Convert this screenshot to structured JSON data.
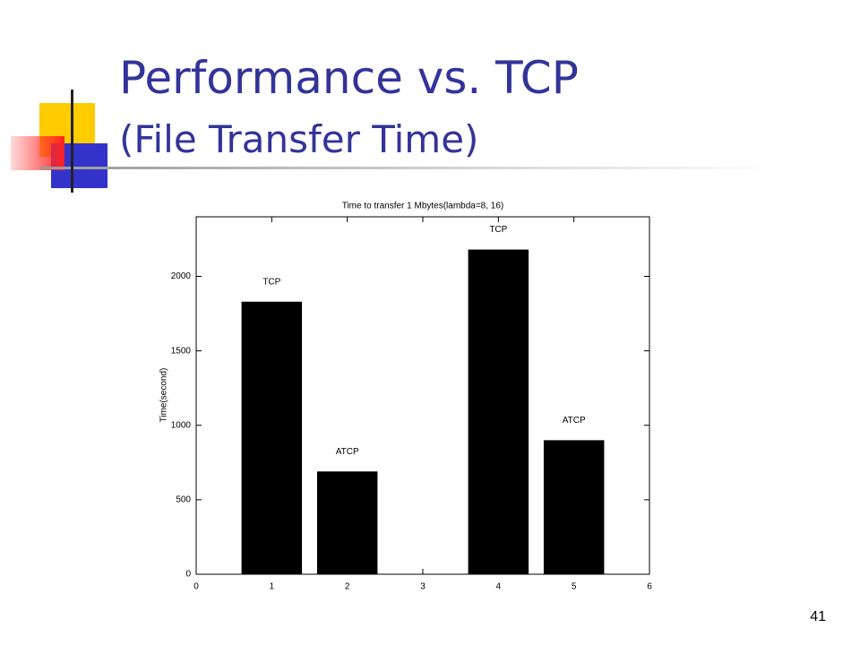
{
  "slide": {
    "title": "Performance vs. TCP",
    "subtitle": "(File Transfer Time)",
    "page_number": "41"
  },
  "chart_data": {
    "type": "bar",
    "title": "Time to transfer 1 Mbytes(lambda=8, 16)",
    "y_label": "Time(second)",
    "x": [
      1,
      2,
      4,
      5
    ],
    "values": [
      1830,
      690,
      2180,
      900
    ],
    "bar_labels": [
      "TCP",
      "ATCP",
      "TCP",
      "ATCP"
    ],
    "color": "#000000",
    "xlim": [
      0,
      6
    ],
    "xticks": [
      0,
      1,
      2,
      3,
      4,
      5,
      6
    ],
    "ylim": [
      0,
      2400
    ],
    "yticks": [
      0,
      500,
      1000,
      1500,
      2000
    ],
    "grid": false
  }
}
